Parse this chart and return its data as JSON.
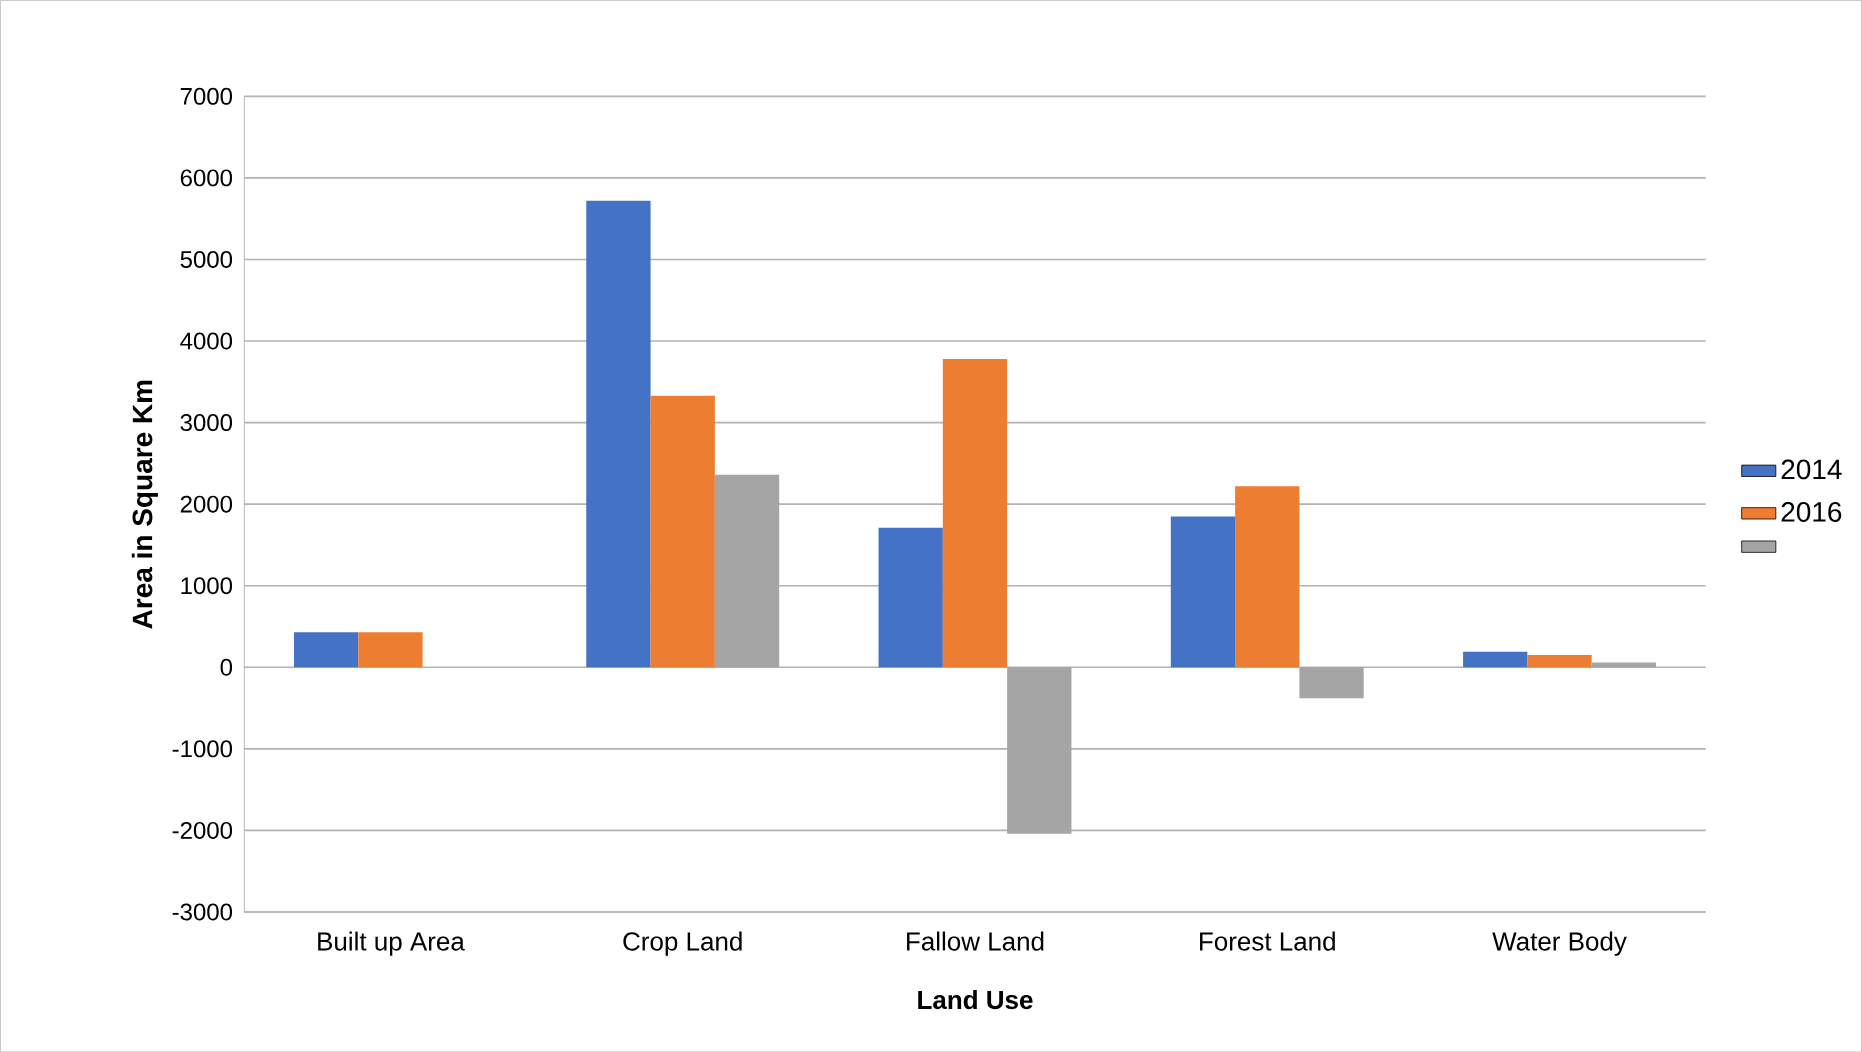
{
  "chart_data": {
    "type": "bar",
    "categories": [
      "Built up Area",
      "Crop Land",
      "Fallow Land",
      "Forest Land",
      "Water Body"
    ],
    "series": [
      {
        "name": "2014",
        "color": "#4472c4",
        "values": [
          430,
          5720,
          1710,
          1850,
          190
        ]
      },
      {
        "name": "2016",
        "color": "#ed7d31",
        "values": [
          430,
          3330,
          3780,
          2220,
          150
        ]
      },
      {
        "color": "#a5a5a5",
        "values": [
          0,
          2360,
          -2040,
          -380,
          60
        ]
      }
    ],
    "xlabel": "Land Use",
    "ylabel": "Area in Square Km",
    "ylim": [
      -3000,
      7000
    ],
    "yticks": [
      -3000,
      -2000,
      -1000,
      0,
      1000,
      2000,
      3000,
      4000,
      5000,
      6000,
      7000
    ],
    "grid": "y",
    "legend": "right"
  }
}
